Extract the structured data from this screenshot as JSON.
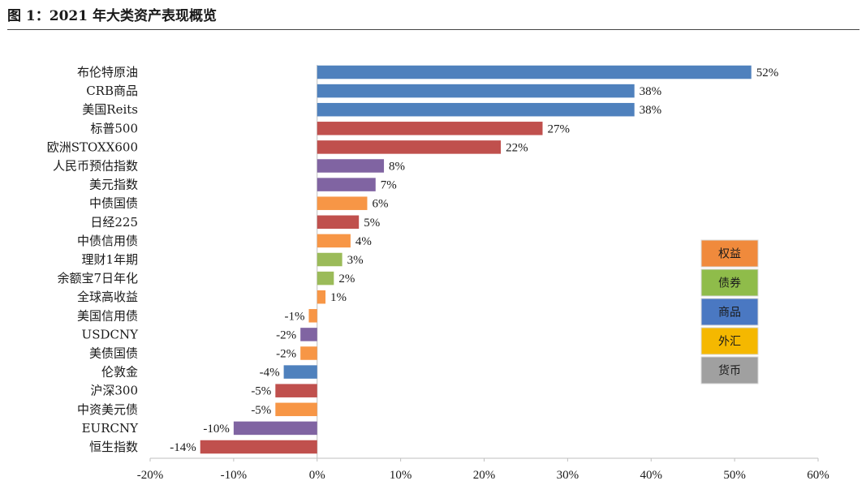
{
  "figure_title": "图 1：2021 年大类资产表现概览",
  "colors": {
    "equity": "#c0504d",
    "bond": "#9bbb59",
    "commodity": "#4f81bd",
    "fx": "#8064a2",
    "money": "#f79646",
    "legend_equity": "#f08a3c",
    "legend_bond": "#8fbc4a",
    "legend_commodity": "#4a78c2",
    "legend_fx": "#f5b800",
    "legend_money": "#a0a0a0"
  },
  "legend": [
    {
      "label": "权益",
      "color_key": "legend_equity"
    },
    {
      "label": "债券",
      "color_key": "legend_bond"
    },
    {
      "label": "商品",
      "color_key": "legend_commodity"
    },
    {
      "label": "外汇",
      "color_key": "legend_fx"
    },
    {
      "label": "货币",
      "color_key": "legend_money"
    }
  ],
  "chart_data": {
    "type": "bar",
    "orientation": "horizontal",
    "title": "图 1：2021 年大类资产表现概览",
    "xlim": [
      -20,
      60
    ],
    "xticks": [
      -20,
      -10,
      0,
      10,
      20,
      30,
      40,
      50,
      60
    ],
    "xtick_labels": [
      "-20%",
      "-10%",
      "0%",
      "10%",
      "20%",
      "30%",
      "40%",
      "50%",
      "60%"
    ],
    "bars": [
      {
        "category": "布伦特原油",
        "value": 52,
        "label": "52%",
        "color_key": "commodity"
      },
      {
        "category": "CRB商品",
        "value": 38,
        "label": "38%",
        "color_key": "commodity"
      },
      {
        "category": "美国Reits",
        "value": 38,
        "label": "38%",
        "color_key": "commodity"
      },
      {
        "category": "标普500",
        "value": 27,
        "label": "27%",
        "color_key": "equity"
      },
      {
        "category": "欧洲STOXX600",
        "value": 22,
        "label": "22%",
        "color_key": "equity"
      },
      {
        "category": "人民币预估指数",
        "value": 8,
        "label": "8%",
        "color_key": "fx"
      },
      {
        "category": "美元指数",
        "value": 7,
        "label": "7%",
        "color_key": "fx"
      },
      {
        "category": "中债国债",
        "value": 6,
        "label": "6%",
        "color_key": "money"
      },
      {
        "category": "日经225",
        "value": 5,
        "label": "5%",
        "color_key": "equity"
      },
      {
        "category": "中债信用债",
        "value": 4,
        "label": "4%",
        "color_key": "money"
      },
      {
        "category": "理财1年期",
        "value": 3,
        "label": "3%",
        "color_key": "bond"
      },
      {
        "category": "余额宝7日年化",
        "value": 2,
        "label": "2%",
        "color_key": "bond"
      },
      {
        "category": "全球高收益",
        "value": 1,
        "label": "1%",
        "color_key": "money"
      },
      {
        "category": "美国信用债",
        "value": -1,
        "label": "-1%",
        "color_key": "money"
      },
      {
        "category": "USDCNY",
        "value": -2,
        "label": "-2%",
        "color_key": "fx"
      },
      {
        "category": "美债国债",
        "value": -2,
        "label": "-2%",
        "color_key": "money"
      },
      {
        "category": "伦敦金",
        "value": -4,
        "label": "-4%",
        "color_key": "commodity"
      },
      {
        "category": "沪深300",
        "value": -5,
        "label": "-5%",
        "color_key": "equity"
      },
      {
        "category": "中资美元债",
        "value": -5,
        "label": "-5%",
        "color_key": "money"
      },
      {
        "category": "EURCNY",
        "value": -10,
        "label": "-10%",
        "color_key": "fx"
      },
      {
        "category": "恒生指数",
        "value": -14,
        "label": "-14%",
        "color_key": "equity"
      }
    ]
  }
}
